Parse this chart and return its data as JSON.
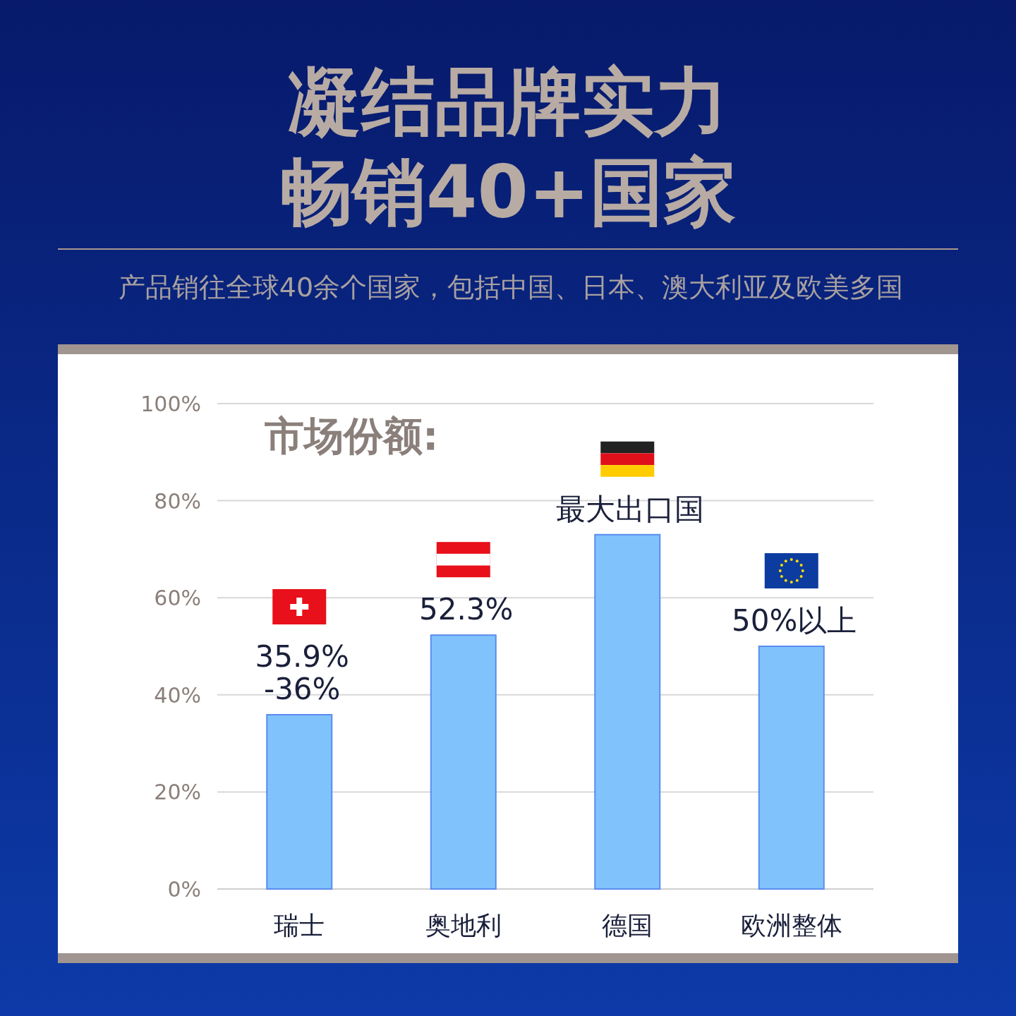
{
  "chart_data": {
    "type": "bar",
    "title": "凝结品牌实力畅销40+国家",
    "subtitle": "产品销往全球40余个国家，包括中国、日本、澳大利亚及欧美多国",
    "annotations": [
      "市场份额:"
    ],
    "categories": [
      "瑞士",
      "奥地利",
      "德国",
      "欧洲整体"
    ],
    "values": [
      35.9,
      52.3,
      73.0,
      50
    ],
    "value_labels": [
      "35.9%\n-36%",
      "52.3%",
      "最大出口国",
      "50%以上"
    ],
    "color": "#80c3fc",
    "ylim": [
      0,
      100
    ],
    "yticks": [
      {
        "value": 0,
        "label": "0%"
      },
      {
        "value": 20,
        "label": "20%"
      },
      {
        "value": 40,
        "label": "40%"
      },
      {
        "value": 60,
        "label": "60%"
      },
      {
        "value": 80,
        "label": "80%"
      },
      {
        "value": 100,
        "label": "100%"
      }
    ],
    "grid": "y"
  }
}
